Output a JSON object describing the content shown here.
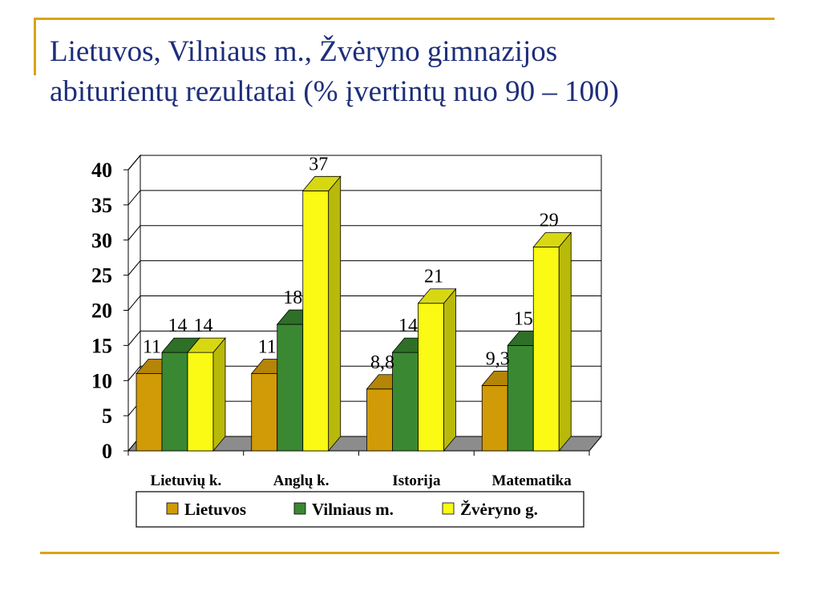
{
  "slide": {
    "title_line1": "Lietuvos, Vilniaus m., Žvėryno gimnazijos",
    "title_line2": "abiturientų rezultatai (% įvertintų nuo 90 – 100)"
  },
  "colors": {
    "frame": "#d9a418",
    "title": "#1d2e7a",
    "series": [
      {
        "front": "#d19a07",
        "side": "#9a7005",
        "top": "#b48506"
      },
      {
        "front": "#3a8832",
        "side": "#245e1e",
        "top": "#2f6f28"
      },
      {
        "front": "#fafa14",
        "side": "#b9b90a",
        "top": "#d8d812"
      }
    ]
  },
  "chart_data": {
    "type": "bar",
    "categories": [
      "Lietuvių k.",
      "Anglų k.",
      "Istorija",
      "Matematika"
    ],
    "series": [
      {
        "name": "Lietuvos",
        "values": [
          11,
          11,
          8.8,
          9.3
        ],
        "labels": [
          "11",
          "11",
          "8,8",
          "9,3"
        ]
      },
      {
        "name": "Vilniaus m.",
        "values": [
          14,
          18,
          14,
          15
        ],
        "labels": [
          "14",
          "18",
          "14",
          "15"
        ]
      },
      {
        "name": "Žvėryno g.",
        "values": [
          14,
          37,
          21,
          29
        ],
        "labels": [
          "14",
          "37",
          "21",
          "29"
        ]
      }
    ],
    "yticks": [
      "0",
      "5",
      "10",
      "15",
      "20",
      "25",
      "30",
      "35",
      "40"
    ],
    "ylim": [
      0,
      40
    ],
    "grid": true,
    "legend_position": "bottom",
    "title": "",
    "xlabel": "",
    "ylabel": ""
  }
}
